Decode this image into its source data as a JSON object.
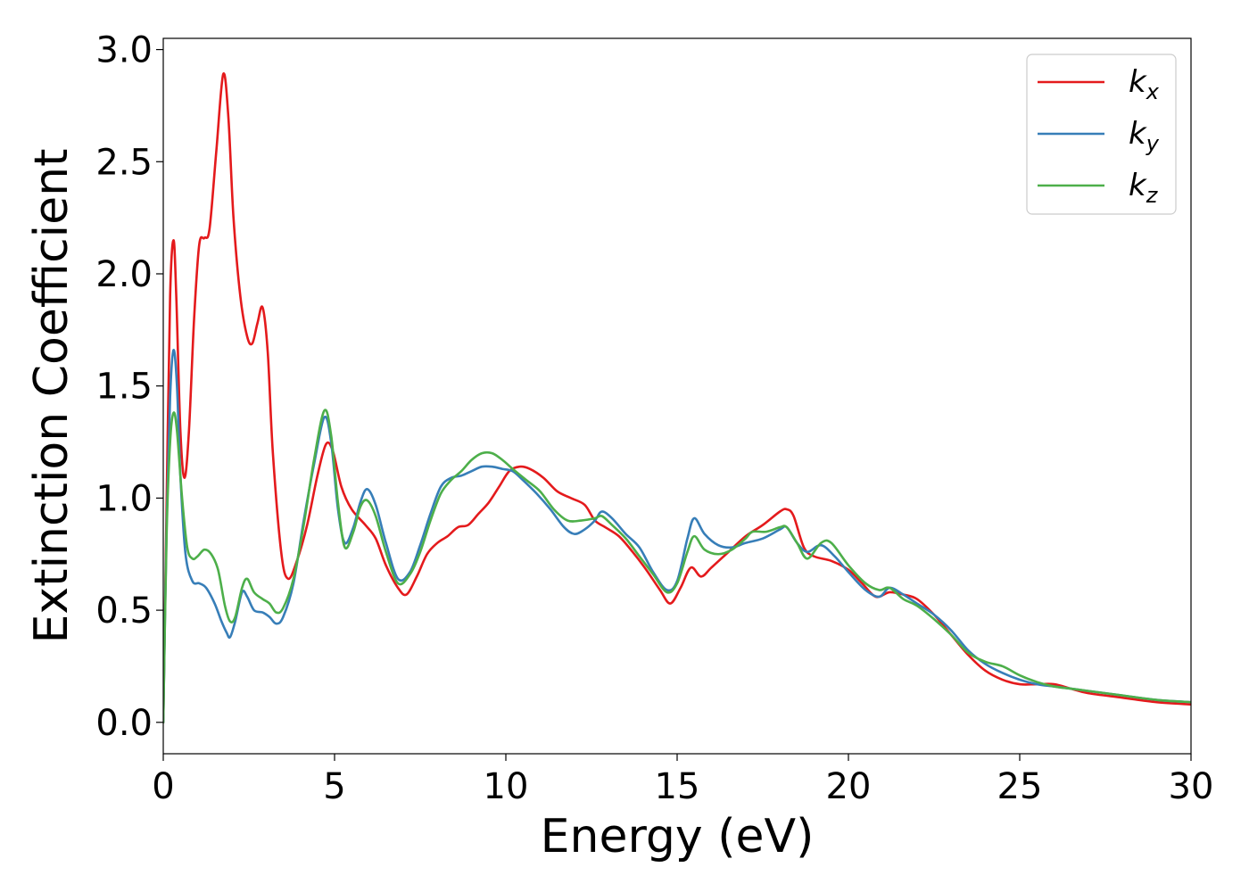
{
  "chart_data": {
    "type": "line",
    "title": "",
    "xlabel": "Energy (eV)",
    "ylabel": "Extinction Coefficient",
    "xlim": [
      0,
      30
    ],
    "ylim": [
      -0.14,
      3.05
    ],
    "xticks": [
      0,
      5,
      10,
      15,
      20,
      25,
      30
    ],
    "xtick_labels": [
      "0",
      "5",
      "10",
      "15",
      "20",
      "25",
      "30"
    ],
    "yticks": [
      0.0,
      0.5,
      1.0,
      1.5,
      2.0,
      2.5,
      3.0
    ],
    "ytick_labels": [
      "0.0",
      "0.5",
      "1.0",
      "1.5",
      "2.0",
      "2.5",
      "3.0"
    ],
    "grid": false,
    "legend_position": "top-right",
    "series": [
      {
        "name": "k_x",
        "label_main": "k",
        "label_sub": "x",
        "color": "#e41a1c",
        "points": [
          [
            0,
            0.0
          ],
          [
            0.1,
            1.0
          ],
          [
            0.2,
            1.9
          ],
          [
            0.3,
            2.15
          ],
          [
            0.38,
            1.9
          ],
          [
            0.5,
            1.3
          ],
          [
            0.62,
            1.09
          ],
          [
            0.75,
            1.3
          ],
          [
            0.9,
            1.8
          ],
          [
            1.05,
            2.13
          ],
          [
            1.2,
            2.16
          ],
          [
            1.35,
            2.2
          ],
          [
            1.55,
            2.55
          ],
          [
            1.75,
            2.89
          ],
          [
            1.9,
            2.7
          ],
          [
            2.05,
            2.25
          ],
          [
            2.25,
            1.9
          ],
          [
            2.45,
            1.72
          ],
          [
            2.6,
            1.69
          ],
          [
            2.75,
            1.78
          ],
          [
            2.9,
            1.85
          ],
          [
            3.05,
            1.65
          ],
          [
            3.2,
            1.2
          ],
          [
            3.45,
            0.75
          ],
          [
            3.65,
            0.64
          ],
          [
            3.9,
            0.72
          ],
          [
            4.2,
            0.88
          ],
          [
            4.5,
            1.1
          ],
          [
            4.75,
            1.24
          ],
          [
            4.95,
            1.21
          ],
          [
            5.2,
            1.05
          ],
          [
            5.5,
            0.95
          ],
          [
            5.9,
            0.88
          ],
          [
            6.2,
            0.82
          ],
          [
            6.5,
            0.7
          ],
          [
            6.85,
            0.6
          ],
          [
            7.1,
            0.57
          ],
          [
            7.4,
            0.65
          ],
          [
            7.7,
            0.75
          ],
          [
            8.0,
            0.8
          ],
          [
            8.3,
            0.83
          ],
          [
            8.6,
            0.87
          ],
          [
            8.9,
            0.88
          ],
          [
            9.2,
            0.93
          ],
          [
            9.5,
            0.98
          ],
          [
            9.8,
            1.05
          ],
          [
            10.1,
            1.12
          ],
          [
            10.4,
            1.14
          ],
          [
            10.7,
            1.13
          ],
          [
            11.1,
            1.09
          ],
          [
            11.5,
            1.03
          ],
          [
            11.9,
            1.0
          ],
          [
            12.3,
            0.97
          ],
          [
            12.6,
            0.9
          ],
          [
            12.9,
            0.87
          ],
          [
            13.3,
            0.83
          ],
          [
            13.7,
            0.76
          ],
          [
            14.1,
            0.68
          ],
          [
            14.5,
            0.59
          ],
          [
            14.8,
            0.53
          ],
          [
            15.1,
            0.6
          ],
          [
            15.4,
            0.69
          ],
          [
            15.7,
            0.65
          ],
          [
            16.0,
            0.69
          ],
          [
            16.5,
            0.76
          ],
          [
            17.0,
            0.83
          ],
          [
            17.5,
            0.88
          ],
          [
            18.0,
            0.94
          ],
          [
            18.2,
            0.95
          ],
          [
            18.4,
            0.92
          ],
          [
            18.7,
            0.78
          ],
          [
            19.0,
            0.74
          ],
          [
            19.5,
            0.72
          ],
          [
            20.0,
            0.68
          ],
          [
            20.4,
            0.62
          ],
          [
            20.8,
            0.56
          ],
          [
            21.2,
            0.58
          ],
          [
            21.6,
            0.57
          ],
          [
            22.0,
            0.55
          ],
          [
            22.5,
            0.48
          ],
          [
            23.0,
            0.39
          ],
          [
            23.5,
            0.3
          ],
          [
            24.0,
            0.23
          ],
          [
            24.5,
            0.19
          ],
          [
            25.0,
            0.17
          ],
          [
            25.5,
            0.17
          ],
          [
            26.0,
            0.17
          ],
          [
            26.5,
            0.15
          ],
          [
            27.0,
            0.13
          ],
          [
            28.0,
            0.11
          ],
          [
            29.0,
            0.09
          ],
          [
            30.0,
            0.08
          ]
        ]
      },
      {
        "name": "k_y",
        "label_main": "k",
        "label_sub": "y",
        "color": "#377eb8",
        "points": [
          [
            0,
            0.0
          ],
          [
            0.1,
            0.9
          ],
          [
            0.2,
            1.45
          ],
          [
            0.3,
            1.66
          ],
          [
            0.4,
            1.5
          ],
          [
            0.5,
            1.1
          ],
          [
            0.65,
            0.75
          ],
          [
            0.85,
            0.63
          ],
          [
            1.05,
            0.62
          ],
          [
            1.25,
            0.6
          ],
          [
            1.5,
            0.53
          ],
          [
            1.7,
            0.45
          ],
          [
            1.85,
            0.4
          ],
          [
            1.95,
            0.38
          ],
          [
            2.1,
            0.45
          ],
          [
            2.3,
            0.58
          ],
          [
            2.45,
            0.56
          ],
          [
            2.65,
            0.5
          ],
          [
            2.9,
            0.49
          ],
          [
            3.1,
            0.47
          ],
          [
            3.3,
            0.44
          ],
          [
            3.5,
            0.47
          ],
          [
            3.8,
            0.62
          ],
          [
            4.1,
            0.9
          ],
          [
            4.4,
            1.15
          ],
          [
            4.7,
            1.36
          ],
          [
            4.9,
            1.25
          ],
          [
            5.1,
            0.95
          ],
          [
            5.3,
            0.8
          ],
          [
            5.55,
            0.87
          ],
          [
            5.75,
            0.98
          ],
          [
            5.95,
            1.04
          ],
          [
            6.2,
            0.97
          ],
          [
            6.5,
            0.8
          ],
          [
            6.85,
            0.64
          ],
          [
            7.2,
            0.67
          ],
          [
            7.5,
            0.79
          ],
          [
            7.8,
            0.93
          ],
          [
            8.1,
            1.05
          ],
          [
            8.4,
            1.09
          ],
          [
            8.7,
            1.1
          ],
          [
            9.0,
            1.12
          ],
          [
            9.3,
            1.14
          ],
          [
            9.6,
            1.14
          ],
          [
            9.9,
            1.13
          ],
          [
            10.2,
            1.12
          ],
          [
            10.5,
            1.08
          ],
          [
            10.9,
            1.02
          ],
          [
            11.3,
            0.95
          ],
          [
            11.7,
            0.87
          ],
          [
            12.0,
            0.84
          ],
          [
            12.3,
            0.86
          ],
          [
            12.6,
            0.9
          ],
          [
            12.8,
            0.94
          ],
          [
            13.1,
            0.91
          ],
          [
            13.5,
            0.84
          ],
          [
            13.9,
            0.78
          ],
          [
            14.3,
            0.67
          ],
          [
            14.7,
            0.59
          ],
          [
            15.0,
            0.63
          ],
          [
            15.3,
            0.82
          ],
          [
            15.5,
            0.91
          ],
          [
            15.8,
            0.84
          ],
          [
            16.2,
            0.79
          ],
          [
            16.6,
            0.78
          ],
          [
            17.0,
            0.8
          ],
          [
            17.5,
            0.82
          ],
          [
            18.0,
            0.86
          ],
          [
            18.2,
            0.87
          ],
          [
            18.5,
            0.8
          ],
          [
            18.8,
            0.76
          ],
          [
            19.2,
            0.79
          ],
          [
            19.6,
            0.74
          ],
          [
            20.0,
            0.67
          ],
          [
            20.5,
            0.59
          ],
          [
            20.9,
            0.56
          ],
          [
            21.2,
            0.6
          ],
          [
            21.6,
            0.57
          ],
          [
            22.0,
            0.53
          ],
          [
            22.5,
            0.48
          ],
          [
            23.0,
            0.41
          ],
          [
            23.5,
            0.32
          ],
          [
            24.0,
            0.26
          ],
          [
            24.5,
            0.22
          ],
          [
            25.0,
            0.19
          ],
          [
            25.5,
            0.17
          ],
          [
            26.0,
            0.16
          ],
          [
            26.5,
            0.15
          ],
          [
            27.0,
            0.14
          ],
          [
            28.0,
            0.12
          ],
          [
            29.0,
            0.1
          ],
          [
            30.0,
            0.09
          ]
        ]
      },
      {
        "name": "k_z",
        "label_main": "k",
        "label_sub": "z",
        "color": "#4daf4a",
        "points": [
          [
            0,
            0.0
          ],
          [
            0.1,
            0.85
          ],
          [
            0.2,
            1.25
          ],
          [
            0.3,
            1.38
          ],
          [
            0.4,
            1.3
          ],
          [
            0.55,
            1.0
          ],
          [
            0.7,
            0.78
          ],
          [
            0.85,
            0.73
          ],
          [
            1.0,
            0.74
          ],
          [
            1.2,
            0.77
          ],
          [
            1.4,
            0.75
          ],
          [
            1.6,
            0.68
          ],
          [
            1.8,
            0.52
          ],
          [
            1.95,
            0.45
          ],
          [
            2.1,
            0.47
          ],
          [
            2.3,
            0.6
          ],
          [
            2.45,
            0.64
          ],
          [
            2.65,
            0.58
          ],
          [
            2.9,
            0.55
          ],
          [
            3.1,
            0.53
          ],
          [
            3.3,
            0.49
          ],
          [
            3.5,
            0.51
          ],
          [
            3.8,
            0.64
          ],
          [
            4.1,
            0.88
          ],
          [
            4.4,
            1.17
          ],
          [
            4.7,
            1.39
          ],
          [
            4.9,
            1.28
          ],
          [
            5.1,
            0.98
          ],
          [
            5.3,
            0.78
          ],
          [
            5.55,
            0.85
          ],
          [
            5.75,
            0.96
          ],
          [
            5.95,
            0.99
          ],
          [
            6.2,
            0.92
          ],
          [
            6.5,
            0.76
          ],
          [
            6.85,
            0.62
          ],
          [
            7.2,
            0.66
          ],
          [
            7.5,
            0.76
          ],
          [
            7.8,
            0.9
          ],
          [
            8.1,
            1.02
          ],
          [
            8.4,
            1.08
          ],
          [
            8.7,
            1.12
          ],
          [
            9.0,
            1.17
          ],
          [
            9.3,
            1.2
          ],
          [
            9.6,
            1.2
          ],
          [
            9.9,
            1.17
          ],
          [
            10.2,
            1.13
          ],
          [
            10.6,
            1.08
          ],
          [
            11.0,
            1.03
          ],
          [
            11.4,
            0.95
          ],
          [
            11.8,
            0.9
          ],
          [
            12.2,
            0.9
          ],
          [
            12.6,
            0.91
          ],
          [
            12.8,
            0.92
          ],
          [
            13.1,
            0.88
          ],
          [
            13.5,
            0.82
          ],
          [
            13.9,
            0.74
          ],
          [
            14.3,
            0.66
          ],
          [
            14.7,
            0.58
          ],
          [
            15.0,
            0.62
          ],
          [
            15.3,
            0.76
          ],
          [
            15.5,
            0.83
          ],
          [
            15.8,
            0.77
          ],
          [
            16.2,
            0.75
          ],
          [
            16.6,
            0.77
          ],
          [
            17.0,
            0.82
          ],
          [
            17.2,
            0.85
          ],
          [
            17.6,
            0.85
          ],
          [
            18.0,
            0.87
          ],
          [
            18.2,
            0.87
          ],
          [
            18.5,
            0.8
          ],
          [
            18.8,
            0.73
          ],
          [
            19.2,
            0.8
          ],
          [
            19.5,
            0.8
          ],
          [
            20.0,
            0.7
          ],
          [
            20.5,
            0.62
          ],
          [
            20.9,
            0.59
          ],
          [
            21.2,
            0.6
          ],
          [
            21.6,
            0.55
          ],
          [
            22.0,
            0.52
          ],
          [
            22.5,
            0.46
          ],
          [
            23.0,
            0.39
          ],
          [
            23.5,
            0.31
          ],
          [
            24.0,
            0.27
          ],
          [
            24.5,
            0.25
          ],
          [
            25.0,
            0.21
          ],
          [
            25.5,
            0.18
          ],
          [
            26.0,
            0.16
          ],
          [
            26.5,
            0.15
          ],
          [
            27.0,
            0.14
          ],
          [
            28.0,
            0.12
          ],
          [
            29.0,
            0.1
          ],
          [
            30.0,
            0.09
          ]
        ]
      }
    ]
  }
}
